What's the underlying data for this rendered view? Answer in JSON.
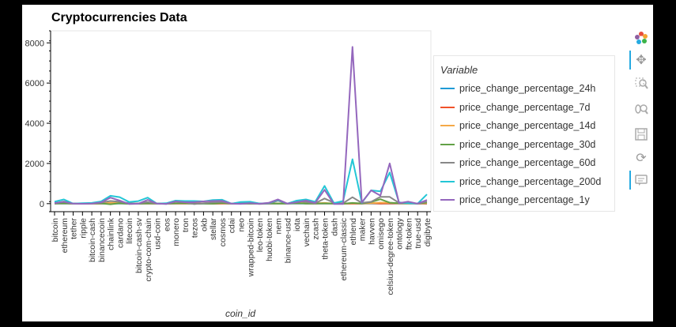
{
  "chart_data": {
    "type": "line",
    "title": "Cryptocurrencies Data",
    "xlabel": "coin_id",
    "ylabel": "",
    "legend_title": "Variable",
    "legend_position": "right",
    "ylim": [
      -400,
      8600
    ],
    "yticks": [
      0,
      2000,
      4000,
      6000,
      8000
    ],
    "categories": [
      "bitcoin",
      "ethereum",
      "tether",
      "ripple",
      "bitcoin-cash",
      "binancecoin",
      "chainlink",
      "cardano",
      "litecoin",
      "bitcoin-cash-sv",
      "crypto-com-chain",
      "usd-coin",
      "eos",
      "monero",
      "tron",
      "tezos",
      "okb",
      "stellar",
      "cosmos",
      "cdai",
      "neo",
      "wrapped-bitcoin",
      "leo-token",
      "huobi-token",
      "nem",
      "binance-usd",
      "iota",
      "vechain",
      "zcash",
      "theta-token",
      "dash",
      "ethereum-classic",
      "ethlend",
      "maker",
      "havven",
      "omisego",
      "celsius-degree-token",
      "ontology",
      "ftx-token",
      "true-usd",
      "digibyte"
    ],
    "series": [
      {
        "name": "price_change_percentage_24h",
        "color": "#1f9bd6",
        "values": [
          1,
          1,
          0,
          -1,
          2,
          2,
          -1,
          5,
          0,
          1,
          -1,
          0,
          -1,
          2,
          1,
          0,
          2,
          0,
          0,
          0,
          1,
          1,
          -1,
          0,
          -3,
          0,
          1,
          1,
          0,
          -1,
          -1,
          0,
          -1,
          1,
          2,
          0,
          2,
          0,
          0,
          0,
          -3
        ]
      },
      {
        "name": "price_change_percentage_7d",
        "color": "#f0522a",
        "values": [
          8,
          12,
          0,
          -2,
          5,
          5,
          26,
          11,
          3,
          6,
          9,
          0,
          1,
          8,
          4,
          7,
          11,
          -2,
          5,
          0,
          12,
          8,
          0,
          3,
          14,
          0,
          23,
          10,
          5,
          11,
          3,
          2,
          -4,
          2,
          20,
          1,
          13,
          7,
          12,
          0,
          5
        ]
      },
      {
        "name": "price_change_percentage_14d",
        "color": "#f5a947",
        "values": [
          7,
          23,
          0,
          -5,
          10,
          13,
          39,
          41,
          7,
          12,
          21,
          0,
          8,
          13,
          18,
          13,
          16,
          22,
          26,
          0,
          14,
          7,
          7,
          13,
          10,
          0,
          47,
          21,
          17,
          37,
          2,
          4,
          21,
          12,
          21,
          51,
          40,
          14,
          16,
          0,
          30
        ]
      },
      {
        "name": "price_change_percentage_30d",
        "color": "#62a146",
        "values": [
          9,
          15,
          0,
          0,
          8,
          11,
          -30,
          26,
          -10,
          -6,
          15,
          0,
          -3,
          15,
          28,
          -5,
          -1,
          -5,
          35,
          0,
          8,
          -5,
          4,
          10,
          8,
          0,
          30,
          4,
          10,
          12,
          8,
          -2,
          36,
          10,
          81,
          220,
          50,
          23,
          22,
          0,
          54
        ]
      },
      {
        "name": "price_change_percentage_60d",
        "color": "#888888",
        "values": [
          21,
          106,
          0,
          8,
          21,
          54,
          130,
          94,
          21,
          8,
          80,
          0,
          -20,
          104,
          76,
          -22,
          19,
          59,
          88,
          0,
          40,
          20,
          -16,
          4,
          150,
          0,
          139,
          83,
          18,
          258,
          43,
          23,
          320,
          37,
          90,
          340,
          335,
          38,
          41,
          0,
          102
        ]
      },
      {
        "name": "price_change_percentage_200d",
        "color": "#23c6d6",
        "values": [
          95,
          208,
          0,
          21,
          35,
          110,
          390,
          325,
          82,
          125,
          300,
          0,
          20,
          152,
          130,
          130,
          110,
          180,
          195,
          0,
          82,
          95,
          8,
          30,
          183,
          0,
          150,
          210,
          90,
          880,
          30,
          130,
          2210,
          45,
          660,
          610,
          1550,
          60,
          30,
          0,
          460
        ]
      },
      {
        "name": "price_change_percentage_1y",
        "color": "#9467bd",
        "values": [
          30,
          90,
          0,
          -8,
          0,
          60,
          300,
          150,
          -15,
          -5,
          190,
          0,
          -12,
          110,
          70,
          70,
          110,
          130,
          140,
          0,
          -10,
          30,
          -8,
          40,
          210,
          0,
          70,
          150,
          40,
          690,
          -20,
          -15,
          7800,
          60,
          660,
          400,
          2000,
          30,
          100,
          0,
          180
        ]
      }
    ]
  },
  "toolbar": {
    "tools": [
      "bokeh-logo-icon",
      "pan-icon",
      "box-zoom-icon",
      "wheel-zoom-icon",
      "save-icon",
      "reset-icon",
      "hover-icon"
    ]
  }
}
